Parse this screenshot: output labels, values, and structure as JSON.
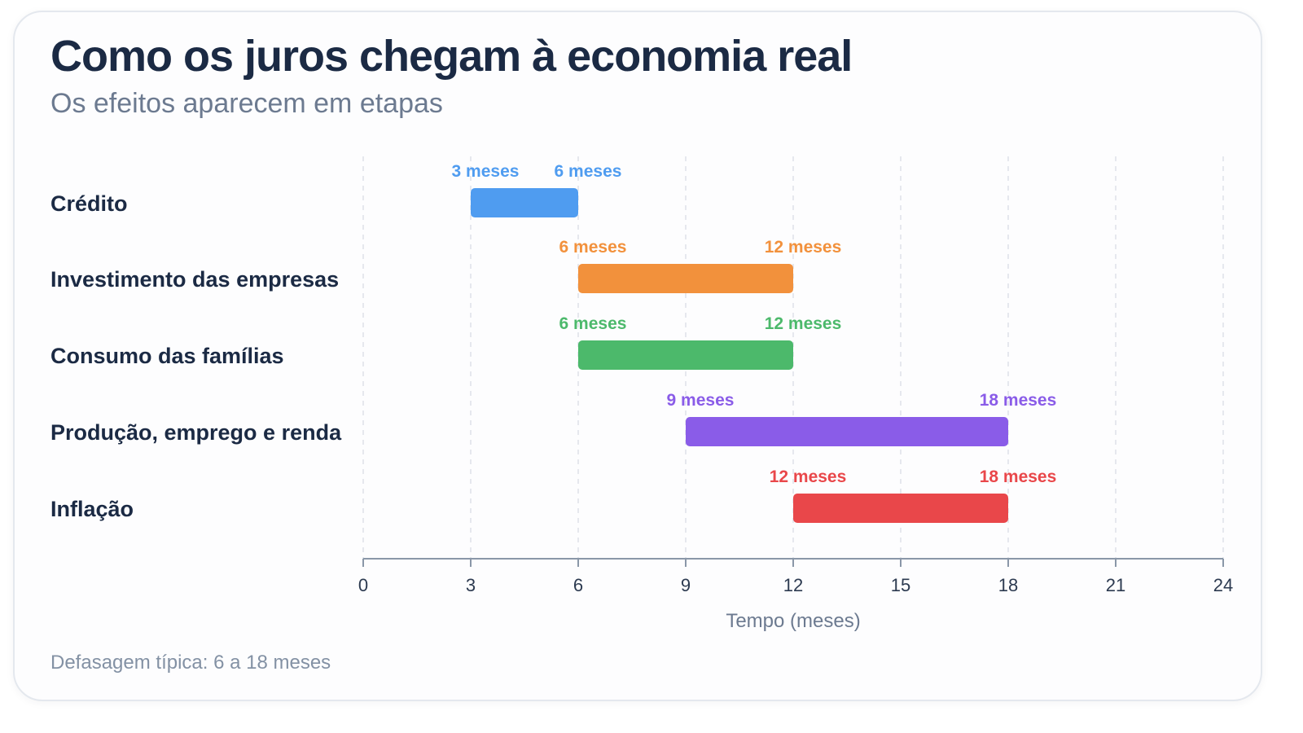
{
  "header": {
    "title": "Como os juros chegam à economia real",
    "subtitle": "Os efeitos aparecem em etapas"
  },
  "footnote": "Defasagem típica: 6 a 18 meses",
  "chart_data": {
    "type": "bar",
    "orientation": "horizontal-range",
    "title": "Como os juros chegam à economia real",
    "subtitle": "Os efeitos aparecem em etapas",
    "xlabel": "Tempo (meses)",
    "ylabel": "",
    "xlim": [
      0,
      24
    ],
    "xticks": [
      0,
      3,
      6,
      9,
      12,
      15,
      18,
      21,
      24
    ],
    "grid": "vertical dashed",
    "unit_suffix": " meses",
    "categories": [
      "Crédito",
      "Investimento das empresas",
      "Consumo das famílias",
      "Produção, emprego e renda",
      "Inflação"
    ],
    "ranges": [
      {
        "category": "Crédito",
        "start": 3,
        "end": 6,
        "start_label": "3 meses",
        "end_label": "6 meses",
        "color": "#4f9cf0"
      },
      {
        "category": "Investimento das empresas",
        "start": 6,
        "end": 12,
        "start_label": "6 meses",
        "end_label": "12 meses",
        "color": "#f2913c"
      },
      {
        "category": "Consumo das famílias",
        "start": 6,
        "end": 12,
        "start_label": "6 meses",
        "end_label": "12 meses",
        "color": "#4cb96b"
      },
      {
        "category": "Produção, emprego e renda",
        "start": 9,
        "end": 18,
        "start_label": "9 meses",
        "end_label": "18 meses",
        "color": "#8a5ce8"
      },
      {
        "category": "Inflação",
        "start": 12,
        "end": 18,
        "start_label": "12 meses",
        "end_label": "18 meses",
        "color": "#e9474a"
      }
    ]
  }
}
